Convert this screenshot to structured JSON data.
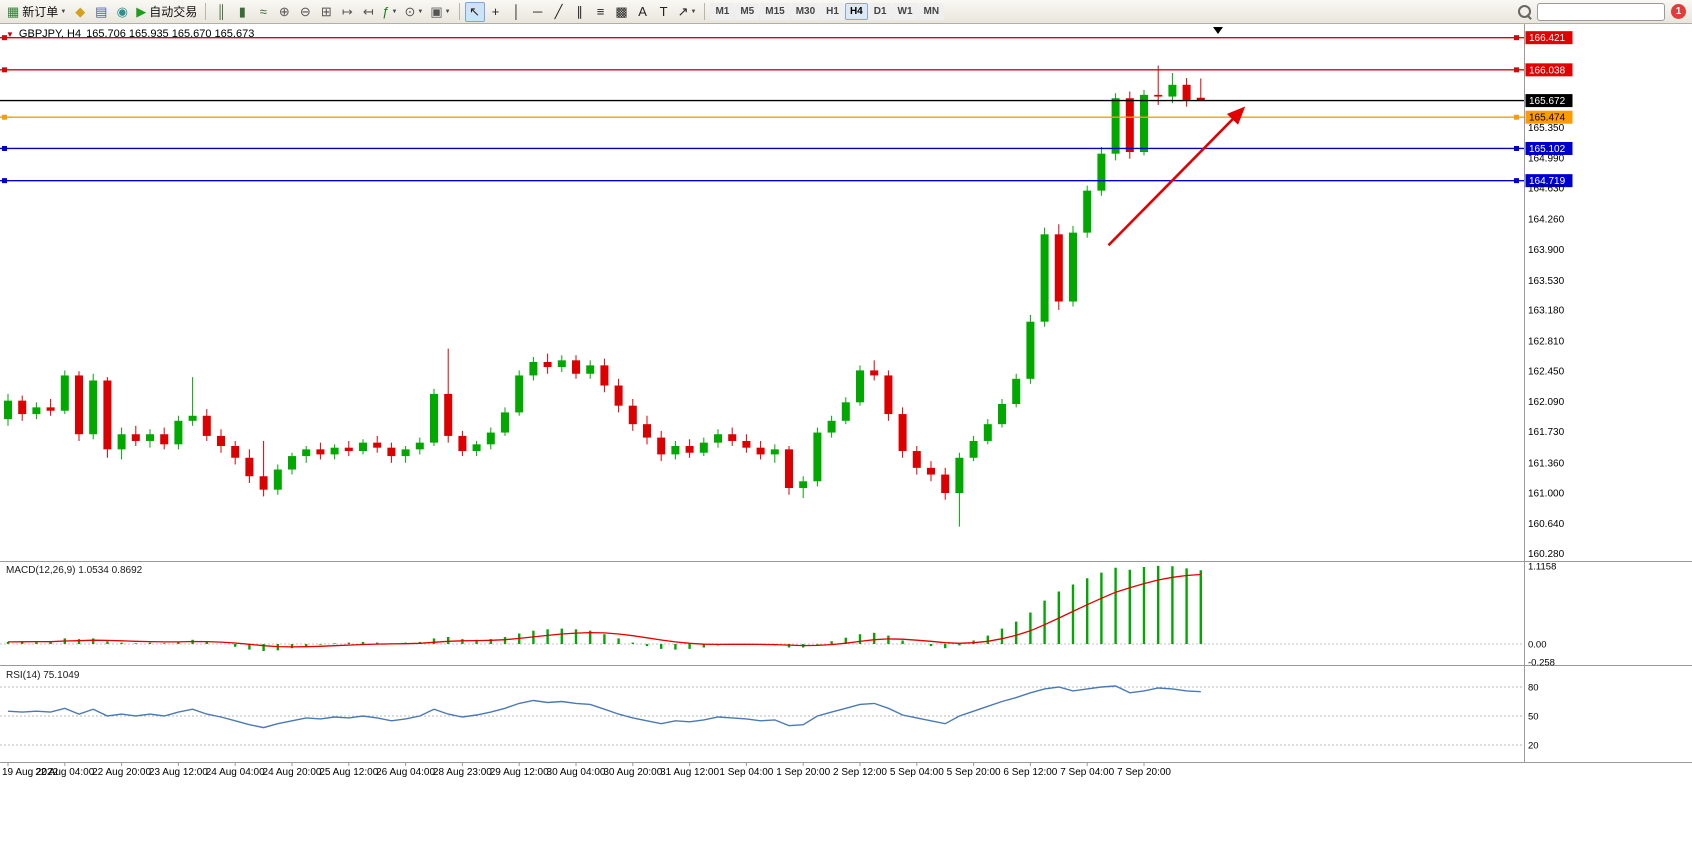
{
  "toolbar": {
    "new_order": "新订单",
    "autotrading": "自动交易",
    "icons_mid": [
      {
        "name": "metaeditor-icon",
        "glyph": "◆",
        "color": "#d4a017"
      },
      {
        "name": "terminal-icon",
        "glyph": "▤",
        "color": "#4a5fb0"
      },
      {
        "name": "market-icon",
        "glyph": "◉",
        "color": "#2a8f8f"
      }
    ],
    "icons_chart": [
      {
        "name": "bar-chart-icon",
        "glyph": "║",
        "color": "#3a6b35"
      },
      {
        "name": "candlestick-chart-icon",
        "glyph": "▮",
        "color": "#3a6b35"
      },
      {
        "name": "line-chart-icon",
        "glyph": "≈",
        "color": "#3a6b35"
      },
      {
        "name": "zoom-in-icon",
        "glyph": "⊕",
        "color": "#555555"
      },
      {
        "name": "zoom-out-icon",
        "glyph": "⊖",
        "color": "#555555"
      },
      {
        "name": "tile-windows-icon",
        "glyph": "⊞",
        "color": "#555555"
      },
      {
        "name": "auto-scroll-icon",
        "glyph": "↦",
        "color": "#555555"
      },
      {
        "name": "chart-shift-icon",
        "glyph": "↤",
        "color": "#555555"
      },
      {
        "name": "indicators-icon",
        "glyph": "ƒ",
        "color": "#1e7a1e",
        "caret": true
      },
      {
        "name": "periods-icon",
        "glyph": "⊙",
        "color": "#555555",
        "caret": true
      },
      {
        "name": "templates-icon",
        "glyph": "▣",
        "color": "#555555",
        "caret": true
      }
    ],
    "icons_tools": [
      {
        "name": "cursor-icon",
        "glyph": "↖",
        "color": "#222222",
        "pressed": true
      },
      {
        "name": "crosshair-icon",
        "glyph": "+",
        "color": "#222222"
      },
      {
        "name": "vertical-line-icon",
        "glyph": "│",
        "color": "#222222"
      },
      {
        "name": "horizontal-line-icon",
        "glyph": "─",
        "color": "#222222"
      },
      {
        "name": "trendline-icon",
        "glyph": "╱",
        "color": "#222222"
      },
      {
        "name": "channel-icon",
        "glyph": "∥",
        "color": "#222222"
      },
      {
        "name": "fibonacci-icon",
        "glyph": "≡",
        "color": "#222222"
      },
      {
        "name": "shapes-icon",
        "glyph": "▩",
        "color": "#222222"
      },
      {
        "name": "text-icon",
        "glyph": "A",
        "color": "#222222"
      },
      {
        "name": "label-icon",
        "glyph": "T",
        "color": "#222222"
      },
      {
        "name": "arrows-icon",
        "glyph": "↗",
        "color": "#222222",
        "caret": true
      }
    ],
    "timeframes": [
      "M1",
      "M5",
      "M15",
      "M30",
      "H1",
      "H4",
      "D1",
      "W1",
      "MN"
    ],
    "active_timeframe": "H4",
    "notification_count": "1",
    "search_value": ""
  },
  "chart": {
    "symbol": "GBPJPY, H4",
    "ohlc_text": "165.706 165.935 165.670 165.673",
    "macd_label": "MACD(12,26,9) 1.0534 0.8692",
    "rsi_label": "RSI(14) 75.1049"
  },
  "chart_data": {
    "type": "candlestick",
    "symbol": "GBPJPY",
    "period": "H4",
    "ohlc_current": {
      "open": 165.706,
      "high": 165.935,
      "low": 165.67,
      "close": 165.673
    },
    "colors": {
      "up": "#00a800",
      "down": "#dd0000",
      "rsi_line": "#4a7ab5",
      "macd_hist": "#00a800",
      "macd_signal": "#e40000"
    },
    "candles": [
      [
        161.88,
        162.18,
        161.8,
        162.1
      ],
      [
        162.1,
        162.16,
        161.86,
        161.94
      ],
      [
        161.94,
        162.08,
        161.88,
        162.02
      ],
      [
        162.02,
        162.12,
        161.92,
        161.98
      ],
      [
        161.98,
        162.46,
        161.94,
        162.4
      ],
      [
        162.4,
        162.45,
        161.62,
        161.7
      ],
      [
        161.7,
        162.42,
        161.64,
        162.34
      ],
      [
        162.34,
        162.38,
        161.42,
        161.52
      ],
      [
        161.52,
        161.78,
        161.4,
        161.7
      ],
      [
        161.7,
        161.8,
        161.56,
        161.62
      ],
      [
        161.62,
        161.76,
        161.54,
        161.7
      ],
      [
        161.7,
        161.78,
        161.52,
        161.58
      ],
      [
        161.58,
        161.92,
        161.52,
        161.86
      ],
      [
        161.86,
        162.38,
        161.8,
        161.92
      ],
      [
        161.92,
        162.0,
        161.62,
        161.68
      ],
      [
        161.68,
        161.76,
        161.48,
        161.56
      ],
      [
        161.56,
        161.62,
        161.34,
        161.42
      ],
      [
        161.42,
        161.52,
        161.12,
        161.2
      ],
      [
        161.2,
        161.62,
        160.96,
        161.04
      ],
      [
        161.04,
        161.34,
        160.98,
        161.28
      ],
      [
        161.28,
        161.48,
        161.22,
        161.44
      ],
      [
        161.44,
        161.56,
        161.36,
        161.52
      ],
      [
        161.52,
        161.6,
        161.4,
        161.46
      ],
      [
        161.46,
        161.58,
        161.4,
        161.54
      ],
      [
        161.54,
        161.62,
        161.44,
        161.5
      ],
      [
        161.5,
        161.64,
        161.46,
        161.6
      ],
      [
        161.6,
        161.68,
        161.48,
        161.54
      ],
      [
        161.54,
        161.6,
        161.36,
        161.44
      ],
      [
        161.44,
        161.56,
        161.36,
        161.52
      ],
      [
        161.52,
        161.66,
        161.46,
        161.6
      ],
      [
        161.6,
        162.24,
        161.56,
        162.18
      ],
      [
        162.18,
        162.72,
        161.6,
        161.68
      ],
      [
        161.68,
        161.74,
        161.44,
        161.5
      ],
      [
        161.5,
        161.62,
        161.44,
        161.58
      ],
      [
        161.58,
        161.78,
        161.52,
        161.72
      ],
      [
        161.72,
        162.02,
        161.68,
        161.96
      ],
      [
        161.96,
        162.46,
        161.92,
        162.4
      ],
      [
        162.4,
        162.62,
        162.34,
        162.56
      ],
      [
        162.56,
        162.66,
        162.42,
        162.5
      ],
      [
        162.5,
        162.64,
        162.44,
        162.58
      ],
      [
        162.58,
        162.64,
        162.36,
        162.42
      ],
      [
        162.42,
        162.58,
        162.36,
        162.52
      ],
      [
        162.52,
        162.6,
        162.2,
        162.28
      ],
      [
        162.28,
        162.36,
        161.96,
        162.04
      ],
      [
        162.04,
        162.12,
        161.74,
        161.82
      ],
      [
        161.82,
        161.92,
        161.58,
        161.66
      ],
      [
        161.66,
        161.74,
        161.38,
        161.46
      ],
      [
        161.46,
        161.62,
        161.4,
        161.56
      ],
      [
        161.56,
        161.64,
        161.42,
        161.48
      ],
      [
        161.48,
        161.66,
        161.44,
        161.6
      ],
      [
        161.6,
        161.76,
        161.54,
        161.7
      ],
      [
        161.7,
        161.78,
        161.56,
        161.62
      ],
      [
        161.62,
        161.7,
        161.48,
        161.54
      ],
      [
        161.54,
        161.62,
        161.4,
        161.46
      ],
      [
        161.46,
        161.58,
        161.36,
        161.52
      ],
      [
        161.52,
        161.56,
        160.98,
        161.06
      ],
      [
        161.06,
        161.2,
        160.94,
        161.14
      ],
      [
        161.14,
        161.78,
        161.08,
        161.72
      ],
      [
        161.72,
        161.92,
        161.66,
        161.86
      ],
      [
        161.86,
        162.14,
        161.82,
        162.08
      ],
      [
        162.08,
        162.52,
        162.04,
        162.46
      ],
      [
        162.46,
        162.58,
        162.34,
        162.4
      ],
      [
        162.4,
        162.46,
        161.86,
        161.94
      ],
      [
        161.94,
        162.02,
        161.42,
        161.5
      ],
      [
        161.5,
        161.56,
        161.22,
        161.3
      ],
      [
        161.3,
        161.38,
        161.14,
        161.22
      ],
      [
        161.22,
        161.3,
        160.92,
        161.0
      ],
      [
        161.0,
        161.48,
        160.6,
        161.42
      ],
      [
        161.42,
        161.68,
        161.38,
        161.62
      ],
      [
        161.62,
        161.88,
        161.58,
        161.82
      ],
      [
        161.82,
        162.12,
        161.78,
        162.06
      ],
      [
        162.06,
        162.42,
        162.02,
        162.36
      ],
      [
        162.36,
        163.12,
        162.3,
        163.04
      ],
      [
        163.04,
        164.16,
        162.98,
        164.08
      ],
      [
        164.08,
        164.2,
        163.18,
        163.28
      ],
      [
        163.28,
        164.18,
        163.22,
        164.1
      ],
      [
        164.1,
        164.66,
        164.04,
        164.6
      ],
      [
        164.6,
        165.12,
        164.54,
        165.04
      ],
      [
        165.04,
        165.76,
        164.96,
        165.7
      ],
      [
        165.7,
        165.78,
        164.98,
        165.06
      ],
      [
        165.06,
        165.8,
        165.02,
        165.74
      ],
      [
        165.74,
        166.09,
        165.62,
        165.72
      ],
      [
        165.72,
        166.0,
        165.64,
        165.86
      ],
      [
        165.86,
        165.94,
        165.6,
        165.68
      ],
      [
        165.706,
        165.935,
        165.67,
        165.673
      ]
    ],
    "time_labels": [
      {
        "text": "19 Aug 2022",
        "candle": 0
      },
      {
        "text": "22 Aug 04:00",
        "candle": 4
      },
      {
        "text": "22 Aug 20:00",
        "candle": 8
      },
      {
        "text": "23 Aug 12:00",
        "candle": 12
      },
      {
        "text": "24 Aug 04:00",
        "candle": 16
      },
      {
        "text": "24 Aug 20:00",
        "candle": 20
      },
      {
        "text": "25 Aug 12:00",
        "candle": 24
      },
      {
        "text": "26 Aug 04:00",
        "candle": 28
      },
      {
        "text": "28 Aug 23:00",
        "candle": 32
      },
      {
        "text": "29 Aug 12:00",
        "candle": 36
      },
      {
        "text": "30 Aug 04:00",
        "candle": 40
      },
      {
        "text": "30 Aug 20:00",
        "candle": 44
      },
      {
        "text": "31 Aug 12:00",
        "candle": 48
      },
      {
        "text": "1 Sep 04:00",
        "candle": 52
      },
      {
        "text": "1 Sep 20:00",
        "candle": 56
      },
      {
        "text": "2 Sep 12:00",
        "candle": 60
      },
      {
        "text": "5 Sep 04:00",
        "candle": 64
      },
      {
        "text": "5 Sep 20:00",
        "candle": 68
      },
      {
        "text": "6 Sep 12:00",
        "candle": 72
      },
      {
        "text": "7 Sep 04:00",
        "candle": 76
      },
      {
        "text": "7 Sep 20:00",
        "candle": 80
      }
    ],
    "price_axis": [
      {
        "text": "166.421",
        "style": "red"
      },
      {
        "text": "166.038",
        "style": "red"
      },
      {
        "text": "165.672",
        "style": "black"
      },
      {
        "text": "165.474",
        "style": "orange"
      },
      {
        "text": "165.350",
        "style": "plain"
      },
      {
        "text": "165.102",
        "style": "blue"
      },
      {
        "text": "164.990",
        "style": "plain"
      },
      {
        "text": "164.719",
        "style": "blue"
      },
      {
        "text": "164.630",
        "style": "plain"
      },
      {
        "text": "164.260",
        "style": "plain"
      },
      {
        "text": "163.900",
        "style": "plain"
      },
      {
        "text": "163.530",
        "style": "plain"
      },
      {
        "text": "163.180",
        "style": "plain"
      },
      {
        "text": "162.810",
        "style": "plain"
      },
      {
        "text": "162.450",
        "style": "plain"
      },
      {
        "text": "162.090",
        "style": "plain"
      },
      {
        "text": "161.730",
        "style": "plain"
      },
      {
        "text": "161.360",
        "style": "plain"
      },
      {
        "text": "161.000",
        "style": "plain"
      },
      {
        "text": "160.640",
        "style": "plain"
      },
      {
        "text": "160.280",
        "style": "plain"
      }
    ],
    "hlines": [
      {
        "price": 166.421,
        "color": "#e40000",
        "handles": true
      },
      {
        "price": 166.038,
        "color": "#e40000",
        "handles": true
      },
      {
        "price": 165.672,
        "color": "#000000",
        "handles": false
      },
      {
        "price": 165.474,
        "color": "#ff9b00",
        "handles": true
      },
      {
        "price": 165.102,
        "color": "#0000cc",
        "handles": true
      },
      {
        "price": 164.719,
        "color": "#0000cc",
        "handles": true
      }
    ],
    "arrow": {
      "from_candle": 77.5,
      "from_price": 163.95,
      "to_candle": 87,
      "to_price": 165.58,
      "color": "#e40000"
    },
    "macd": {
      "name": "MACD(12,26,9)",
      "value": 1.0534,
      "signal_value": 0.8692,
      "axis": [
        {
          "text": "1.1158",
          "value": 1.1158
        },
        {
          "text": "0.00",
          "value": 0
        },
        {
          "text": "-0.258",
          "value": -0.258
        }
      ],
      "values": [
        0.03,
        0.04,
        0.04,
        0.03,
        0.08,
        0.07,
        0.08,
        0.04,
        0.02,
        0.01,
        0.02,
        0.01,
        0.03,
        0.06,
        0.03,
        0.0,
        -0.04,
        -0.08,
        -0.1,
        -0.09,
        -0.06,
        -0.03,
        -0.01,
        0.01,
        0.02,
        0.03,
        0.02,
        0.01,
        0.02,
        0.03,
        0.08,
        0.1,
        0.07,
        0.06,
        0.07,
        0.1,
        0.15,
        0.19,
        0.21,
        0.22,
        0.21,
        0.19,
        0.14,
        0.08,
        0.02,
        -0.03,
        -0.07,
        -0.08,
        -0.07,
        -0.05,
        -0.02,
        0.0,
        0.0,
        -0.01,
        -0.02,
        -0.05,
        -0.05,
        -0.01,
        0.04,
        0.09,
        0.14,
        0.16,
        0.12,
        0.05,
        0.0,
        -0.03,
        -0.06,
        -0.02,
        0.05,
        0.12,
        0.22,
        0.32,
        0.45,
        0.62,
        0.75,
        0.85,
        0.94,
        1.02,
        1.09,
        1.06,
        1.1,
        1.1158,
        1.11,
        1.08,
        1.0534
      ]
    },
    "rsi": {
      "name": "RSI(14)",
      "value": 75.1049,
      "levels": [
        {
          "text": "80",
          "value": 80
        },
        {
          "text": "50",
          "value": 50
        },
        {
          "text": "20",
          "value": 20
        }
      ],
      "values": [
        55,
        54,
        55,
        54,
        58,
        52,
        57,
        50,
        52,
        50,
        52,
        50,
        54,
        57,
        52,
        49,
        45,
        41,
        38,
        42,
        45,
        48,
        47,
        49,
        48,
        50,
        48,
        45,
        47,
        50,
        57,
        52,
        49,
        51,
        54,
        58,
        63,
        66,
        64,
        65,
        63,
        62,
        57,
        52,
        48,
        45,
        42,
        45,
        44,
        46,
        49,
        48,
        47,
        45,
        46,
        40,
        41,
        50,
        54,
        58,
        62,
        63,
        58,
        51,
        48,
        45,
        42,
        50,
        55,
        60,
        65,
        69,
        74,
        78,
        80,
        76,
        78,
        80,
        81,
        74,
        76,
        79,
        78,
        76,
        75.1
      ]
    }
  }
}
